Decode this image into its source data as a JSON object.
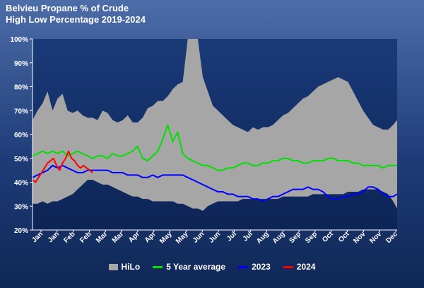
{
  "title_line1": "Belvieu Propane % of Crude",
  "title_line2": "High Low Percentage 2019-2024",
  "chart_data": {
    "type": "area",
    "title": "Belvieu Propane % of Crude",
    "subtitle": "High Low Percentage 2019-2024",
    "xlabel": "",
    "ylabel": "",
    "ylim": [
      20,
      100
    ],
    "y_ticks": [
      "20%",
      "30%",
      "40%",
      "50%",
      "60%",
      "70%",
      "80%",
      "90%",
      "100%"
    ],
    "x_ticks": [
      "Jan",
      "Jan",
      "Feb",
      "Feb",
      "Mar",
      "Mar",
      "Apr",
      "Apr",
      "May",
      "May",
      "Jun",
      "Jun",
      "Jul",
      "Jul",
      "Aug",
      "Aug",
      "Sep",
      "Sep",
      "Oct",
      "Oct",
      "Nov",
      "Nov",
      "Dec"
    ],
    "x": [
      1,
      6,
      11,
      16,
      21,
      26,
      31,
      36,
      41,
      46,
      51,
      56,
      61,
      66,
      71,
      76,
      81,
      86,
      91,
      96,
      101,
      106,
      111,
      116,
      121,
      126,
      131,
      136,
      141,
      146,
      151,
      156,
      161,
      166,
      171,
      176,
      181,
      186,
      191,
      196,
      201,
      206,
      211,
      216,
      221,
      226,
      231,
      236,
      241,
      246,
      251,
      256,
      261,
      266,
      271,
      276,
      281,
      286,
      291,
      296,
      301,
      306,
      311,
      316,
      321,
      326,
      331,
      336,
      341,
      346,
      351,
      356,
      361,
      365
    ],
    "series": [
      {
        "name": "HiLo",
        "color": "#a6a6a6",
        "high": [
          66,
          70,
          73,
          78,
          70,
          75,
          77,
          70,
          69,
          70,
          68,
          67,
          67,
          66,
          70,
          69,
          66,
          65,
          66,
          68,
          65,
          65,
          67,
          71,
          72,
          74,
          74,
          76,
          79,
          81,
          82,
          100,
          100,
          100,
          84,
          78,
          72,
          70,
          68,
          66,
          64,
          63,
          62,
          61,
          63,
          62,
          63,
          63,
          64,
          66,
          68,
          69,
          71,
          73,
          75,
          76,
          78,
          80,
          81,
          82,
          83,
          84,
          83,
          82,
          78,
          74,
          70,
          67,
          64,
          63,
          62,
          62,
          64,
          66
        ],
        "low": [
          31,
          31,
          32,
          31,
          32,
          32,
          33,
          34,
          35,
          37,
          39,
          41,
          41,
          40,
          39,
          39,
          38,
          37,
          36,
          35,
          34,
          34,
          33,
          33,
          32,
          32,
          32,
          32,
          32,
          31,
          31,
          30,
          29,
          29,
          28,
          30,
          31,
          32,
          32,
          32,
          32,
          32,
          33,
          33,
          33,
          33,
          33,
          33,
          33,
          33,
          34,
          34,
          34,
          34,
          34,
          34,
          35,
          35,
          35,
          35,
          35,
          35,
          35,
          36,
          36,
          36,
          37,
          37,
          37,
          37,
          36,
          35,
          32,
          29
        ]
      },
      {
        "name": "5 Year average",
        "color": "#00e000",
        "values": [
          51,
          52,
          53,
          52,
          53,
          52,
          53,
          51,
          52,
          53,
          52,
          51,
          50,
          51,
          51,
          50,
          52,
          51,
          51,
          52,
          53,
          55,
          50,
          49,
          51,
          53,
          58,
          64,
          57,
          61,
          52,
          50,
          49,
          48,
          47,
          47,
          46,
          45,
          45,
          46,
          46,
          47,
          48,
          48,
          47,
          47,
          48,
          48,
          49,
          49,
          50,
          50,
          49,
          49,
          48,
          48,
          49,
          49,
          49,
          50,
          50,
          49,
          49,
          49,
          48,
          48,
          47,
          47,
          47,
          47,
          46,
          47,
          47,
          47
        ]
      },
      {
        "name": "2023",
        "color": "#0000ff",
        "values": [
          42,
          43,
          44,
          45,
          47,
          46,
          47,
          46,
          45,
          44,
          44,
          45,
          45,
          45,
          45,
          45,
          44,
          44,
          44,
          43,
          43,
          43,
          42,
          42,
          43,
          42,
          43,
          43,
          43,
          43,
          43,
          42,
          41,
          40,
          39,
          38,
          37,
          36,
          36,
          35,
          35,
          34,
          34,
          34,
          33,
          33,
          32,
          33,
          34,
          34,
          35,
          36,
          37,
          37,
          37,
          38,
          37,
          37,
          36,
          34,
          33,
          33,
          34,
          34,
          35,
          35,
          36,
          38,
          38,
          37,
          35,
          34,
          34,
          35
        ]
      },
      {
        "name": "2024",
        "color": "#ff0000",
        "x": [
          1,
          4,
          7,
          10,
          13,
          16,
          19,
          22,
          25,
          28,
          31,
          34,
          37,
          40,
          43,
          46,
          49,
          52,
          55,
          58,
          61
        ],
        "values": [
          41,
          40,
          42,
          44,
          46,
          48,
          49,
          50,
          47,
          45,
          48,
          50,
          53,
          50,
          49,
          47,
          46,
          47,
          46,
          45,
          44
        ]
      }
    ],
    "legend": [
      "HiLo",
      "5 Year average",
      "2023",
      "2024"
    ],
    "legend_position": "bottom",
    "grid": false
  }
}
